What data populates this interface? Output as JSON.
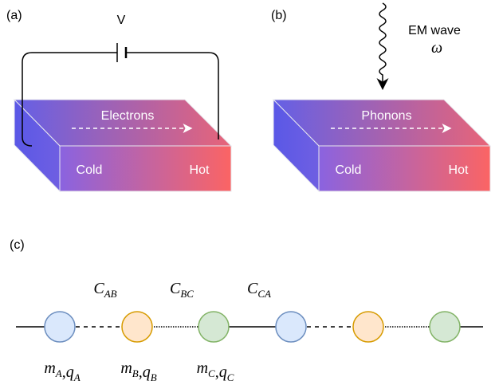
{
  "panel_a": {
    "label": "(a)",
    "voltage": "V",
    "carrier": "Electrons",
    "cold": "Cold",
    "hot": "Hot"
  },
  "panel_b": {
    "label": "(b)",
    "wave": "EM wave",
    "frequency": "ω",
    "carrier": "Phonons",
    "cold": "Cold",
    "hot": "Hot"
  },
  "panel_c": {
    "label": "(c)",
    "couplings": [
      {
        "base": "C",
        "sub": "AB"
      },
      {
        "base": "C",
        "sub": "BC"
      },
      {
        "base": "C",
        "sub": "CA"
      }
    ],
    "separator": ",",
    "masses": [
      [
        {
          "base": "m",
          "sub": "A"
        },
        {
          "base": "q",
          "sub": "A"
        }
      ],
      [
        {
          "base": "m",
          "sub": "B"
        },
        {
          "base": "q",
          "sub": "B"
        }
      ],
      [
        {
          "base": "m",
          "sub": "C"
        },
        {
          "base": "q",
          "sub": "C"
        }
      ]
    ]
  }
}
